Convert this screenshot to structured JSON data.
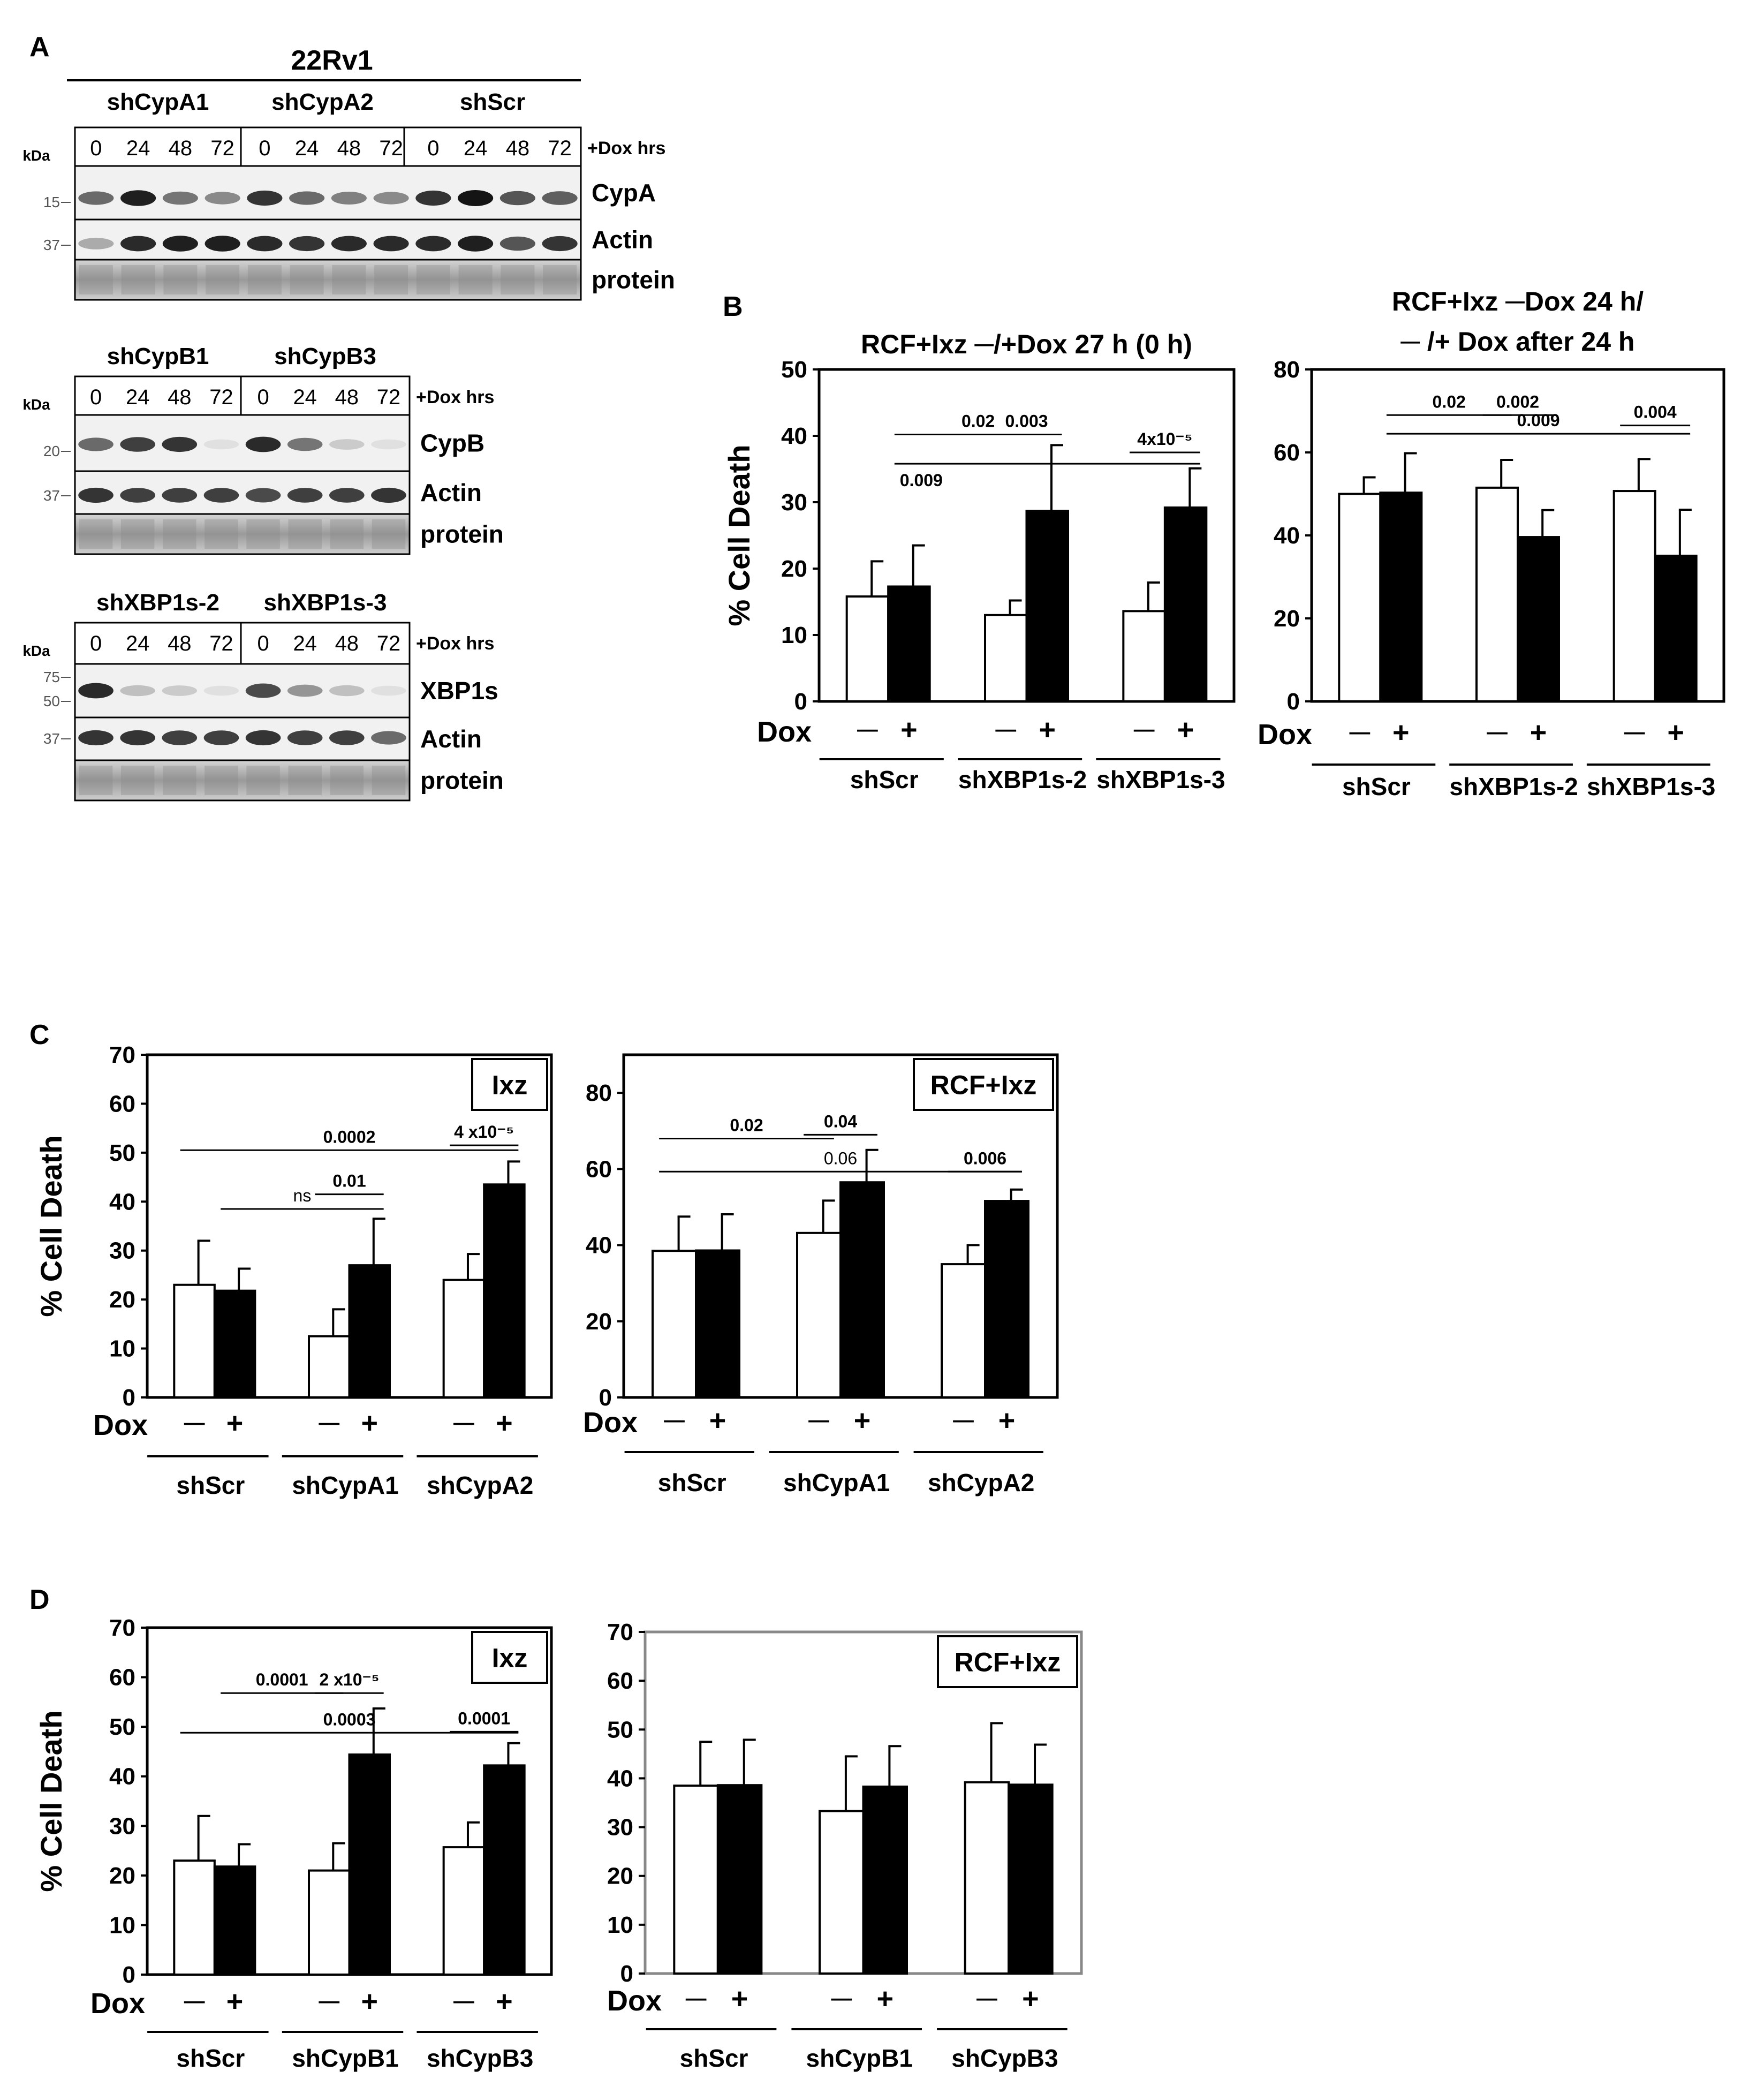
{
  "panel_labels": [
    "A",
    "B",
    "C",
    "D"
  ],
  "western": {
    "cell_line": "22Rv1",
    "kda_label": "kDa",
    "dox_label": "+Dox hrs",
    "timepoints": [
      "0",
      "24",
      "48",
      "72"
    ],
    "blots": [
      {
        "groups": [
          "shCypA1",
          "shCypA2",
          "shScr"
        ],
        "rows": [
          {
            "label": "CypA",
            "marker": [
              "15"
            ]
          },
          {
            "label": "Actin",
            "marker": [
              "37"
            ]
          },
          {
            "label": "protein",
            "marker": []
          }
        ]
      },
      {
        "groups": [
          "shCypB1",
          "shCypB3"
        ],
        "rows": [
          {
            "label": "CypB",
            "marker": [
              "20"
            ]
          },
          {
            "label": "Actin",
            "marker": [
              "37"
            ]
          },
          {
            "label": "protein",
            "marker": []
          }
        ]
      },
      {
        "groups": [
          "shXBP1s-2",
          "shXBP1s-3"
        ],
        "rows": [
          {
            "label": "XBP1s",
            "marker": [
              "75",
              "50"
            ]
          },
          {
            "label": "Actin",
            "marker": [
              "37"
            ]
          },
          {
            "label": "protein",
            "marker": []
          }
        ]
      }
    ]
  },
  "chart_data": [
    {
      "id": "B-left",
      "type": "bar",
      "title": [
        "RCF+Ixz ─/+Dox 27 h (0 h)"
      ],
      "ylabel": "% Cell Death",
      "ylim": [
        0,
        50
      ],
      "yticks": [
        0,
        10,
        20,
        30,
        40,
        50
      ],
      "groups": [
        "shScr",
        "shXBP1s-2",
        "shXBP1s-3"
      ],
      "xlabel": "Dox",
      "conditions": [
        "─",
        "+"
      ],
      "series": [
        {
          "name": "-Dox",
          "color": "#ffffff",
          "values": [
            15.8,
            13.0,
            13.6
          ],
          "errors": [
            5.3,
            2.2,
            4.3
          ]
        },
        {
          "name": "+Dox",
          "color": "#000000",
          "values": [
            17.3,
            28.7,
            29.2
          ],
          "errors": [
            6.2,
            9.9,
            5.9
          ]
        }
      ],
      "annotations": [
        {
          "text": "0.02",
          "from": [
            0,
            1
          ],
          "to": [
            1,
            1
          ],
          "y": 40.2,
          "bold": true
        },
        {
          "text": "0.003",
          "from": [
            1,
            0
          ],
          "to": [
            1,
            1
          ],
          "y": 40.2,
          "bold": true
        },
        {
          "text": "4x10⁻⁵",
          "from": [
            2,
            0
          ],
          "to": [
            2,
            1
          ],
          "y": 37.5,
          "bold": true
        },
        {
          "text": "0.009",
          "from": [
            0,
            1
          ],
          "to": [
            2,
            1
          ],
          "y": 35.8,
          "bold": true,
          "label_below": true
        }
      ]
    },
    {
      "id": "B-right",
      "type": "bar",
      "title": [
        "RCF+Ixz ─Dox 24 h/",
        "─ /+ Dox after 24 h"
      ],
      "ylabel": "",
      "ylim": [
        0,
        80
      ],
      "yticks": [
        0,
        20,
        40,
        60,
        80
      ],
      "groups": [
        "shScr",
        "shXBP1s-2",
        "shXBP1s-3"
      ],
      "xlabel": "Dox",
      "conditions": [
        "─",
        "+"
      ],
      "series": [
        {
          "name": "-Dox",
          "color": "#ffffff",
          "values": [
            50.0,
            51.5,
            50.7
          ],
          "errors": [
            4.0,
            6.7,
            7.7
          ]
        },
        {
          "name": "+Dox",
          "color": "#000000",
          "values": [
            50.3,
            39.6,
            35.1
          ],
          "errors": [
            9.5,
            6.5,
            11.1
          ]
        }
      ],
      "annotations": [
        {
          "text": "0.02",
          "from": [
            0,
            1
          ],
          "to": [
            1,
            0
          ],
          "y": 69.0,
          "bold": true
        },
        {
          "text": "0.002",
          "from": [
            1,
            0
          ],
          "to": [
            1,
            1
          ],
          "y": 69.0,
          "bold": true
        },
        {
          "text": "0.009",
          "from": [
            0,
            1
          ],
          "to": [
            2,
            1
          ],
          "y": 64.5,
          "bold": true
        },
        {
          "text": "0.004",
          "from": [
            2,
            0
          ],
          "to": [
            2,
            1
          ],
          "y": 66.5,
          "bold": true
        }
      ]
    },
    {
      "id": "C-left",
      "type": "bar",
      "title": [],
      "legend_box": "Ixz",
      "ylabel": "% Cell Death",
      "ylim": [
        0,
        70
      ],
      "yticks": [
        0,
        10,
        20,
        30,
        40,
        50,
        60,
        70
      ],
      "groups": [
        "shScr",
        "shCypA1",
        "shCypA2"
      ],
      "xlabel": "Dox",
      "conditions": [
        "─",
        "+"
      ],
      "series": [
        {
          "name": "-Dox",
          "color": "#ffffff",
          "values": [
            23.0,
            12.5,
            24.0
          ],
          "errors": [
            9.0,
            5.5,
            5.3
          ]
        },
        {
          "name": "+Dox",
          "color": "#000000",
          "values": [
            21.8,
            27.0,
            43.5
          ],
          "errors": [
            4.5,
            9.5,
            4.7
          ]
        }
      ],
      "annotations": [
        {
          "text": "0.0002",
          "from": [
            0,
            0
          ],
          "to": [
            2,
            1
          ],
          "y": 50.5,
          "bold": true
        },
        {
          "text": "4 x10⁻⁵",
          "from": [
            2,
            0
          ],
          "to": [
            2,
            1
          ],
          "y": 51.5,
          "bold": true
        },
        {
          "text": "ns",
          "from": [
            0,
            1
          ],
          "to": [
            1,
            1
          ],
          "y": 38.5,
          "bold": false
        },
        {
          "text": "0.01",
          "from": [
            1,
            0
          ],
          "to": [
            1,
            1
          ],
          "y": 41.5,
          "bold": true
        }
      ]
    },
    {
      "id": "C-right",
      "type": "bar",
      "title": [],
      "legend_box": "RCF+Ixz",
      "ylabel": "",
      "ylim": [
        0,
        90
      ],
      "yticks": [
        0,
        20,
        40,
        60,
        80
      ],
      "groups": [
        "shScr",
        "shCypA1",
        "shCypA2"
      ],
      "xlabel": "Dox",
      "conditions": [
        "─",
        "+"
      ],
      "series": [
        {
          "name": "-Dox",
          "color": "#ffffff",
          "values": [
            38.5,
            43.2,
            35.0
          ],
          "errors": [
            9.0,
            8.5,
            5.0
          ]
        },
        {
          "name": "+Dox",
          "color": "#000000",
          "values": [
            38.6,
            56.5,
            51.6
          ],
          "errors": [
            9.5,
            8.5,
            3.0
          ]
        }
      ],
      "annotations": [
        {
          "text": "0.02",
          "from": [
            0,
            0
          ],
          "to": [
            1,
            0
          ],
          "y": 68.0,
          "bold": true
        },
        {
          "text": "0.04",
          "from": [
            1,
            0
          ],
          "to": [
            1,
            1
          ],
          "y": 69.0,
          "bold": true
        },
        {
          "text": "0.06",
          "from": [
            0,
            0
          ],
          "to": [
            2,
            1
          ],
          "y": 59.3,
          "bold": false
        },
        {
          "text": "0.006",
          "from": [
            2,
            0
          ],
          "to": [
            2,
            1
          ],
          "y": 59.3,
          "bold": true
        }
      ]
    },
    {
      "id": "D-left",
      "type": "bar",
      "title": [],
      "legend_box": "Ixz",
      "ylabel": "% Cell Death",
      "ylim": [
        0,
        70
      ],
      "yticks": [
        0,
        10,
        20,
        30,
        40,
        50,
        60,
        70
      ],
      "groups": [
        "shScr",
        "shCypB1",
        "shCypB3"
      ],
      "xlabel": "Dox",
      "conditions": [
        "─",
        "+"
      ],
      "series": [
        {
          "name": "-Dox",
          "color": "#ffffff",
          "values": [
            23.0,
            21.0,
            25.7
          ],
          "errors": [
            9.0,
            5.5,
            5.0
          ]
        },
        {
          "name": "+Dox",
          "color": "#000000",
          "values": [
            21.8,
            44.4,
            42.2
          ],
          "errors": [
            4.5,
            9.3,
            4.5
          ]
        }
      ],
      "annotations": [
        {
          "text": "0.0001",
          "from": [
            0,
            1
          ],
          "to": [
            1,
            0
          ],
          "y": 56.8,
          "bold": true
        },
        {
          "text": "2 x10⁻⁵",
          "from": [
            1,
            0
          ],
          "to": [
            1,
            1
          ],
          "y": 56.8,
          "bold": true
        },
        {
          "text": "0.0003",
          "from": [
            0,
            0
          ],
          "to": [
            2,
            1
          ],
          "y": 48.8,
          "bold": true
        },
        {
          "text": "0.0001",
          "from": [
            2,
            0
          ],
          "to": [
            2,
            1
          ],
          "y": 49.0,
          "bold": true
        }
      ]
    },
    {
      "id": "D-right",
      "type": "bar",
      "title": [],
      "legend_box": "RCF+Ixz",
      "ylabel": "",
      "ylim": [
        0,
        70
      ],
      "yticks": [
        0,
        10,
        20,
        30,
        40,
        50,
        60,
        70
      ],
      "groups": [
        "shScr",
        "shCypB1",
        "shCypB3"
      ],
      "xlabel": "Dox",
      "conditions": [
        "─",
        "+"
      ],
      "series": [
        {
          "name": "-Dox",
          "color": "#ffffff",
          "values": [
            38.5,
            33.3,
            39.2
          ],
          "errors": [
            9.0,
            11.2,
            12.1
          ]
        },
        {
          "name": "+Dox",
          "color": "#000000",
          "values": [
            38.6,
            38.3,
            38.7
          ],
          "errors": [
            9.3,
            8.3,
            8.2
          ]
        }
      ],
      "annotations": []
    }
  ]
}
